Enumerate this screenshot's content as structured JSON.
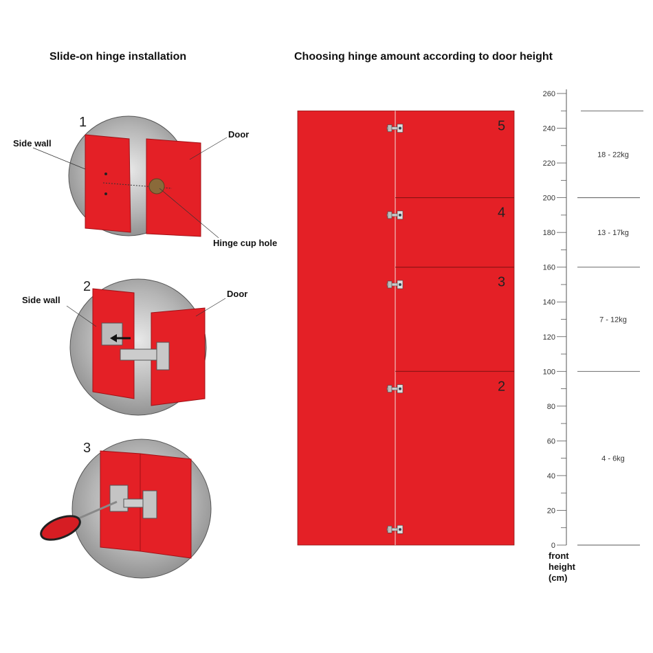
{
  "left": {
    "title": "Slide-on hinge installation",
    "steps": [
      {
        "number": "1",
        "labels": [
          "Side wall",
          "Door",
          "Hinge cup hole"
        ]
      },
      {
        "number": "2",
        "labels": [
          "Side wall",
          "Door"
        ]
      },
      {
        "number": "3",
        "labels": []
      }
    ]
  },
  "right": {
    "title": "Choosing hinge amount according to door height",
    "door_sections": [
      "5",
      "4",
      "3",
      "2"
    ],
    "hinge_count": 5,
    "axis": {
      "label_lines": [
        "front",
        "height",
        "(cm)"
      ],
      "ticks": [
        "0",
        "20",
        "40",
        "60",
        "80",
        "100",
        "120",
        "140",
        "160",
        "180",
        "200",
        "220",
        "240",
        "260"
      ],
      "range": [
        0,
        260
      ]
    },
    "bands": [
      {
        "from": 200,
        "to": 250,
        "label": "18 - 22kg"
      },
      {
        "from": 160,
        "to": 200,
        "label": "13 - 17kg"
      },
      {
        "from": 100,
        "to": 160,
        "label": "7 - 12kg"
      },
      {
        "from": 0,
        "to": 100,
        "label": "4 - 6kg"
      }
    ],
    "section_boundaries_cm": [
      200,
      160,
      100
    ],
    "hinge_positions_cm": [
      240,
      190,
      150,
      90,
      9
    ],
    "colors": {
      "door": "#e42026",
      "circle": "#9a9a9a"
    }
  }
}
